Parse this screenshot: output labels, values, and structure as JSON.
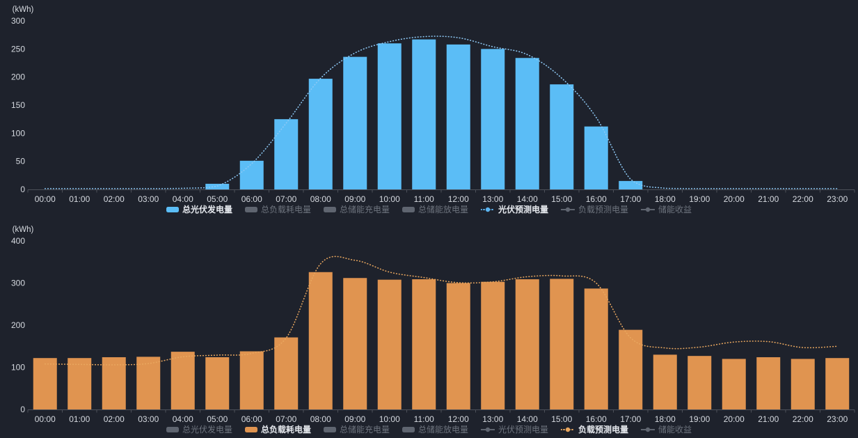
{
  "colors": {
    "background": "#1E222C",
    "axis_line": "#4C5059",
    "tick_label": "#D6DAE0",
    "legend_active_text": "#E6E9EE",
    "legend_inactive_marker": "#5F6570",
    "legend_inactive_text": "#6E747E",
    "pv_bar": "#5BBDF6",
    "pv_forecast": "#8EC9F5",
    "load_bar": "#E09450",
    "load_forecast": "#E9A75F"
  },
  "chart_data": [
    {
      "id": "pv",
      "type": "bar",
      "title": "",
      "unit_label": "(kWh)",
      "xlabel": "",
      "ylabel": "(kWh)",
      "ylim": [
        0,
        300
      ],
      "yticks": [
        0,
        50,
        100,
        150,
        200,
        250,
        300
      ],
      "grid": false,
      "legend_position": "bottom",
      "categories": [
        "00:00",
        "01:00",
        "02:00",
        "03:00",
        "04:00",
        "05:00",
        "06:00",
        "07:00",
        "08:00",
        "09:00",
        "10:00",
        "11:00",
        "12:00",
        "13:00",
        "14:00",
        "15:00",
        "16:00",
        "17:00",
        "18:00",
        "19:00",
        "20:00",
        "21:00",
        "22:00",
        "23:00"
      ],
      "series": [
        {
          "name": "总光伏发电量",
          "type": "bar",
          "color": "#5BBDF6",
          "values": [
            0,
            0,
            0,
            0,
            0,
            10,
            51,
            125,
            197,
            236,
            260,
            267,
            258,
            250,
            234,
            187,
            112,
            15,
            0,
            0,
            0,
            0,
            0,
            0
          ]
        },
        {
          "name": "光伏预测电量",
          "type": "dotted_line",
          "color": "#8EC9F5",
          "values": [
            1,
            1,
            1,
            1,
            2,
            6,
            46,
            118,
            198,
            243,
            263,
            272,
            270,
            254,
            240,
            198,
            128,
            18,
            2,
            1,
            1,
            1,
            1,
            1
          ]
        }
      ],
      "legend": [
        {
          "label": "总光伏发电量",
          "marker": "bar",
          "active": true,
          "color": "#5BBDF6"
        },
        {
          "label": "总负载耗电量",
          "marker": "bar",
          "active": false,
          "color": "#5F6570"
        },
        {
          "label": "总储能充电量",
          "marker": "bar",
          "active": false,
          "color": "#5F6570"
        },
        {
          "label": "总储能放电量",
          "marker": "bar",
          "active": false,
          "color": "#5F6570"
        },
        {
          "label": "光伏预测电量",
          "marker": "line",
          "active": true,
          "color": "#5BB4F0"
        },
        {
          "label": "负载预测电量",
          "marker": "line",
          "active": false,
          "color": "#5F6570"
        },
        {
          "label": "储能收益",
          "marker": "line",
          "active": false,
          "color": "#5F6570"
        }
      ]
    },
    {
      "id": "load",
      "type": "bar",
      "title": "",
      "unit_label": "(kWh)",
      "xlabel": "",
      "ylabel": "(kWh)",
      "ylim": [
        0,
        400
      ],
      "yticks": [
        0,
        100,
        200,
        300,
        400
      ],
      "grid": false,
      "legend_position": "bottom",
      "categories": [
        "00:00",
        "01:00",
        "02:00",
        "03:00",
        "04:00",
        "05:00",
        "06:00",
        "07:00",
        "08:00",
        "09:00",
        "10:00",
        "11:00",
        "12:00",
        "13:00",
        "14:00",
        "15:00",
        "16:00",
        "17:00",
        "18:00",
        "19:00",
        "20:00",
        "21:00",
        "22:00",
        "23:00"
      ],
      "series": [
        {
          "name": "总负载耗电量",
          "type": "bar",
          "color": "#E09450",
          "values": [
            122,
            122,
            124,
            125,
            137,
            124,
            138,
            171,
            326,
            312,
            308,
            309,
            300,
            303,
            309,
            310,
            287,
            189,
            130,
            127,
            120,
            124,
            120,
            122
          ]
        },
        {
          "name": "负载预测电量",
          "type": "dotted_line",
          "color": "#E9A75F",
          "values": [
            108,
            107,
            106,
            109,
            125,
            129,
            133,
            170,
            346,
            354,
            326,
            313,
            301,
            303,
            315,
            317,
            300,
            170,
            146,
            148,
            160,
            161,
            147,
            150
          ]
        }
      ],
      "legend": [
        {
          "label": "总光伏发电量",
          "marker": "bar",
          "active": false,
          "color": "#5F6570"
        },
        {
          "label": "总负载耗电量",
          "marker": "bar",
          "active": true,
          "color": "#E09450"
        },
        {
          "label": "总储能充电量",
          "marker": "bar",
          "active": false,
          "color": "#5F6570"
        },
        {
          "label": "总储能放电量",
          "marker": "bar",
          "active": false,
          "color": "#5F6570"
        },
        {
          "label": "光伏预测电量",
          "marker": "line",
          "active": false,
          "color": "#5F6570"
        },
        {
          "label": "负载预测电量",
          "marker": "line",
          "active": true,
          "color": "#E9A75F"
        },
        {
          "label": "储能收益",
          "marker": "line",
          "active": false,
          "color": "#5F6570"
        }
      ]
    }
  ]
}
